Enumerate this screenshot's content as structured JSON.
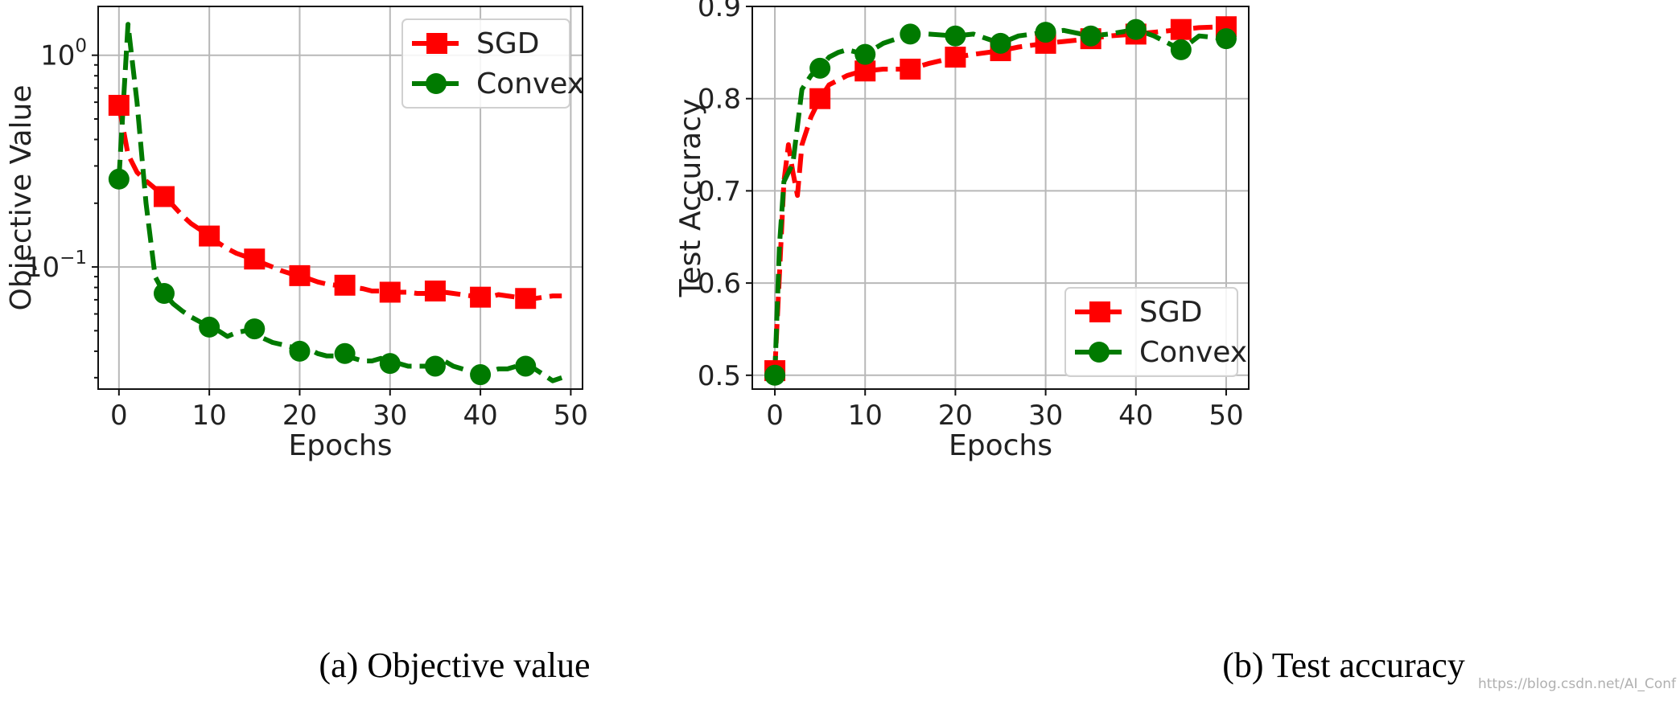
{
  "colors": {
    "sgd": "#ff0000",
    "convex": "#007a00",
    "grid": "#b8b8b8"
  },
  "captions": {
    "left": "(a) Objective value",
    "right": "(b) Test accuracy"
  },
  "watermark": "https://blog.csdn.net/AI_Conf",
  "chart_data": [
    {
      "type": "line",
      "title": "",
      "xlabel": "Epochs",
      "ylabel": "Objective Value",
      "yscale": "log",
      "xlim": [
        -2.3,
        51.3
      ],
      "ylim": [
        0.0265,
        1.7
      ],
      "xticks": [
        0,
        10,
        20,
        30,
        40,
        50
      ],
      "xtick_labels": [
        "0",
        "10",
        "20",
        "30",
        "40",
        "50"
      ],
      "yticks": [
        1,
        0.1
      ],
      "ytick_labels": [
        [
          "10",
          "0"
        ],
        [
          "10",
          "−1"
        ]
      ],
      "grid": true,
      "legend": "top-right",
      "series": [
        {
          "name": "SGD",
          "marker": "square",
          "x": [
            0,
            1,
            2,
            3,
            4,
            5,
            6,
            7,
            8,
            9,
            10,
            11,
            12,
            13,
            14,
            15,
            16,
            17,
            18,
            19,
            20,
            21,
            22,
            23,
            24,
            25,
            26,
            27,
            28,
            29,
            30,
            31,
            32,
            33,
            34,
            35,
            36,
            37,
            38,
            39,
            40,
            41,
            42,
            43,
            44,
            45,
            46,
            47,
            48,
            49
          ],
          "values": [
            0.58,
            0.34,
            0.28,
            0.255,
            0.235,
            0.215,
            0.195,
            0.175,
            0.16,
            0.15,
            0.14,
            0.13,
            0.122,
            0.116,
            0.112,
            0.109,
            0.104,
            0.1,
            0.096,
            0.093,
            0.091,
            0.088,
            0.085,
            0.083,
            0.082,
            0.082,
            0.08,
            0.079,
            0.077,
            0.077,
            0.076,
            0.076,
            0.076,
            0.075,
            0.075,
            0.077,
            0.076,
            0.075,
            0.074,
            0.073,
            0.072,
            0.072,
            0.074,
            0.073,
            0.072,
            0.071,
            0.071,
            0.072,
            0.073,
            0.073
          ],
          "marker_every": 5
        },
        {
          "name": "Convex",
          "marker": "circle",
          "x": [
            0,
            1,
            2,
            3,
            4,
            5,
            6,
            7,
            8,
            9,
            10,
            11,
            12,
            13,
            14,
            15,
            16,
            17,
            18,
            19,
            20,
            21,
            22,
            23,
            24,
            25,
            26,
            27,
            28,
            29,
            30,
            31,
            32,
            33,
            34,
            35,
            36,
            37,
            38,
            39,
            40,
            41,
            42,
            43,
            44,
            45,
            46,
            47,
            48,
            49
          ],
          "values": [
            0.26,
            1.4,
            0.6,
            0.2,
            0.09,
            0.075,
            0.067,
            0.062,
            0.058,
            0.055,
            0.052,
            0.05,
            0.047,
            0.049,
            0.05,
            0.051,
            0.046,
            0.044,
            0.043,
            0.042,
            0.04,
            0.041,
            0.039,
            0.038,
            0.038,
            0.039,
            0.037,
            0.036,
            0.036,
            0.037,
            0.035,
            0.035,
            0.034,
            0.034,
            0.034,
            0.034,
            0.036,
            0.034,
            0.033,
            0.032,
            0.031,
            0.032,
            0.033,
            0.033,
            0.034,
            0.034,
            0.033,
            0.031,
            0.029,
            0.03
          ],
          "marker_every": 5
        }
      ]
    },
    {
      "type": "line",
      "title": "",
      "xlabel": "Epochs",
      "ylabel": "Test Accuracy",
      "yscale": "linear",
      "xlim": [
        -2.5,
        52.5
      ],
      "ylim": [
        0.485,
        0.9
      ],
      "xticks": [
        0,
        10,
        20,
        30,
        40,
        50
      ],
      "xtick_labels": [
        "0",
        "10",
        "20",
        "30",
        "40",
        "50"
      ],
      "yticks": [
        0.5,
        0.6,
        0.7,
        0.8,
        0.9
      ],
      "ytick_labels": [
        "0.5",
        "0.6",
        "0.7",
        "0.8",
        "0.9"
      ],
      "grid": true,
      "legend": "bottom-right",
      "series": [
        {
          "name": "SGD",
          "marker": "square",
          "x": [
            0,
            1,
            1.5,
            2,
            2.5,
            3,
            4,
            5,
            6,
            7,
            8,
            9,
            10,
            12,
            15,
            17,
            20,
            22,
            25,
            27,
            30,
            32,
            35,
            37,
            40,
            42,
            45,
            47,
            50
          ],
          "values": [
            0.505,
            0.71,
            0.75,
            0.72,
            0.695,
            0.75,
            0.78,
            0.8,
            0.815,
            0.82,
            0.825,
            0.828,
            0.83,
            0.832,
            0.832,
            0.838,
            0.845,
            0.848,
            0.852,
            0.856,
            0.86,
            0.862,
            0.865,
            0.868,
            0.87,
            0.872,
            0.875,
            0.877,
            0.878
          ],
          "marker_x": [
            0,
            5,
            10,
            15,
            20,
            25,
            30,
            35,
            40,
            45,
            50
          ],
          "marker_values": [
            0.505,
            0.8,
            0.83,
            0.832,
            0.845,
            0.852,
            0.86,
            0.865,
            0.87,
            0.875,
            0.878
          ]
        },
        {
          "name": "Convex",
          "marker": "circle",
          "x": [
            0,
            0.5,
            1,
            2,
            3,
            4,
            5,
            6,
            7,
            8,
            10,
            12,
            15,
            17,
            20,
            22,
            25,
            27,
            30,
            32,
            35,
            37,
            40,
            42,
            45,
            47,
            50
          ],
          "values": [
            0.5,
            0.64,
            0.71,
            0.73,
            0.81,
            0.825,
            0.833,
            0.845,
            0.85,
            0.853,
            0.848,
            0.86,
            0.87,
            0.87,
            0.868,
            0.87,
            0.86,
            0.868,
            0.872,
            0.874,
            0.868,
            0.87,
            0.875,
            0.868,
            0.853,
            0.868,
            0.865
          ],
          "marker_x": [
            0,
            5,
            10,
            15,
            20,
            25,
            30,
            35,
            40,
            45,
            50
          ],
          "marker_values": [
            0.5,
            0.833,
            0.848,
            0.87,
            0.868,
            0.86,
            0.872,
            0.868,
            0.875,
            0.853,
            0.865
          ]
        }
      ]
    }
  ]
}
